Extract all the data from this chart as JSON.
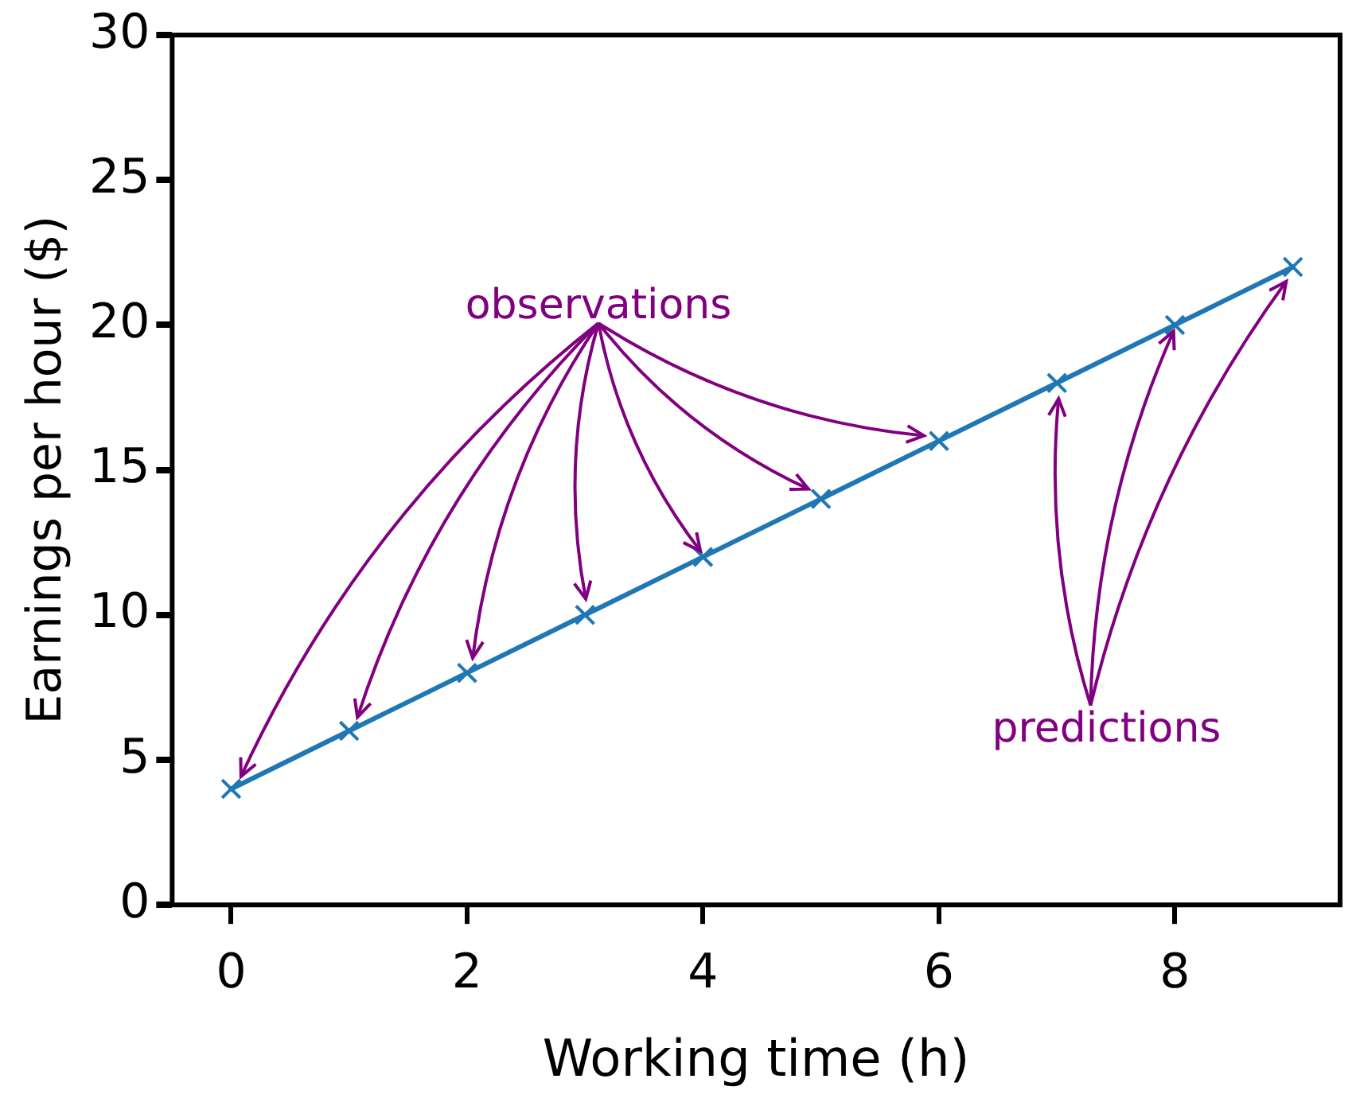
{
  "chart_data": {
    "type": "line",
    "xlabel": "Working time (h)",
    "ylabel": "Earnings per hour ($)",
    "x": [
      0,
      1,
      2,
      3,
      4,
      5,
      6,
      7,
      8,
      9
    ],
    "series": [
      {
        "color": "#1f77b4",
        "values": [
          4,
          6,
          8,
          10,
          12,
          14,
          16,
          18,
          20,
          22
        ]
      }
    ],
    "xlim": [
      -0.5,
      9.4
    ],
    "xticks": [
      0,
      2,
      4,
      6,
      8
    ],
    "ylim": [
      0,
      30
    ],
    "yticks": [
      0,
      5,
      10,
      15,
      20,
      25,
      30
    ],
    "grid": false,
    "legend": false,
    "marker": "cross",
    "line_style": "solid",
    "annotations": [
      {
        "text": "observations",
        "x": 4,
        "y": 12
      },
      {
        "text": "predictions",
        "x": 8,
        "y": 20
      }
    ]
  }
}
